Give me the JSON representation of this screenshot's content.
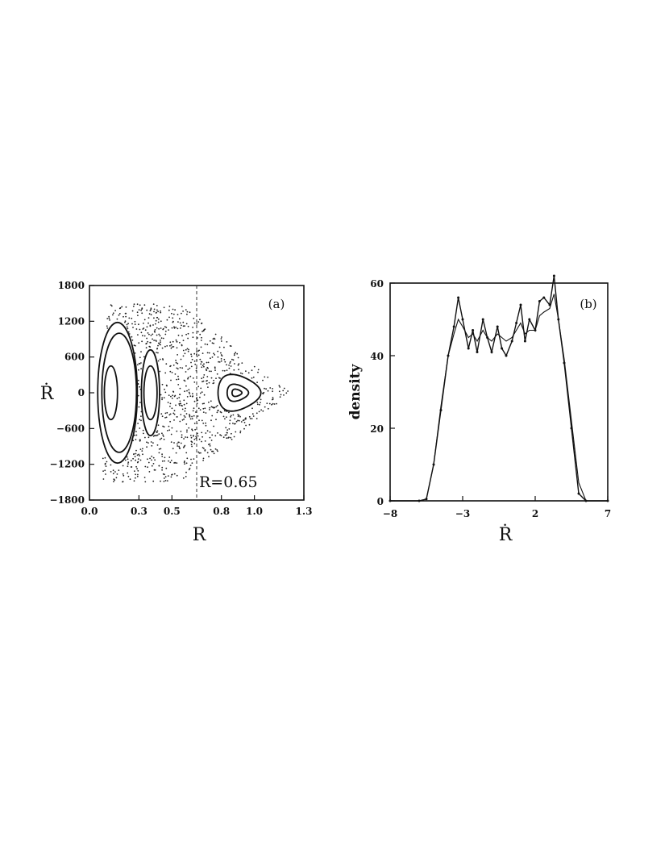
{
  "chart_data": [
    {
      "panel": "(a)",
      "type": "scatter",
      "xlabel": "R",
      "ylabel": "Ṙ",
      "xlim": [
        0.0,
        1.3
      ],
      "ylim": [
        -1800,
        1800
      ],
      "xticks": [
        "0.0",
        "0.3",
        "0.5",
        "0.8",
        "1.0",
        "1.3"
      ],
      "yticks": [
        "1800",
        "1200",
        "600",
        "0",
        "−600",
        "−1200",
        "−1800"
      ],
      "annotation": "R=0.65",
      "section_line_x": 0.65,
      "curves": [
        {
          "shape": "closed-orbit",
          "center": [
            0.13,
            0
          ],
          "half_width": 0.04,
          "half_height": 450
        },
        {
          "shape": "closed-orbit",
          "center": [
            0.17,
            0
          ],
          "half_width": 0.12,
          "half_height": 1180
        },
        {
          "shape": "closed-orbit",
          "center": [
            0.18,
            0
          ],
          "half_width": 0.105,
          "half_height": 1000
        },
        {
          "shape": "closed-orbit",
          "center": [
            0.37,
            0
          ],
          "half_width": 0.04,
          "half_height": 450
        },
        {
          "shape": "closed-orbit",
          "center": [
            0.37,
            0
          ],
          "half_width": 0.055,
          "half_height": 720
        },
        {
          "shape": "island",
          "center": [
            0.89,
            0
          ],
          "half_width": 0.03,
          "half_height": 60
        },
        {
          "shape": "island",
          "center": [
            0.89,
            0
          ],
          "half_width": 0.065,
          "half_height": 140
        },
        {
          "shape": "island",
          "center": [
            0.89,
            0
          ],
          "half_width": 0.13,
          "half_height": 300
        }
      ],
      "chaotic_sea": {
        "r_range": [
          0.08,
          1.22
        ],
        "rdot_range": [
          -1500,
          1500
        ],
        "points": 900
      }
    },
    {
      "panel": "(b)",
      "type": "line",
      "xlabel": "Ṙ",
      "ylabel": "density",
      "xlim": [
        -8,
        7
      ],
      "ylim": [
        0,
        60
      ],
      "xticks": [
        "−8",
        "−3",
        "2",
        "7"
      ],
      "yticks": [
        "0",
        "20",
        "40",
        "60"
      ],
      "series": [
        {
          "x": [
            -8,
            -6.0,
            -5.5,
            -5.0,
            -4.5,
            -4.0,
            -3.6,
            -3.3,
            -3.0,
            -2.6,
            -2.3,
            -2.0,
            -1.6,
            -1.3,
            -1.0,
            -0.6,
            -0.3,
            0.0,
            0.4,
            0.7,
            1.0,
            1.3,
            1.6,
            2.0,
            2.3,
            2.6,
            3.0,
            3.3,
            3.6,
            4.0,
            4.5,
            5.0,
            5.5,
            7
          ],
          "y": [
            0,
            0,
            0.5,
            10,
            25,
            40,
            48,
            56,
            50,
            42,
            47,
            41,
            50,
            45,
            41,
            48,
            42,
            40,
            44,
            49,
            54,
            44,
            50,
            47,
            55,
            56,
            54,
            62,
            50,
            38,
            20,
            2,
            0,
            0
          ]
        },
        {
          "x": [
            -8,
            -6.0,
            -5.5,
            -5.0,
            -4.5,
            -4.0,
            -3.6,
            -3.3,
            -3.0,
            -2.6,
            -2.3,
            -2.0,
            -1.6,
            -1.3,
            -1.0,
            -0.6,
            -0.3,
            0.0,
            0.4,
            0.7,
            1.0,
            1.3,
            1.6,
            2.0,
            2.3,
            2.6,
            3.0,
            3.3,
            3.6,
            4.0,
            4.5,
            5.0,
            5.5,
            7
          ],
          "y": [
            0,
            0,
            0.5,
            10,
            26,
            40,
            46,
            50,
            48,
            45,
            46,
            44,
            47,
            45,
            44,
            46,
            45,
            44,
            45,
            47,
            49,
            46,
            47,
            47,
            51,
            52,
            53,
            57,
            50,
            39,
            22,
            5,
            0,
            0
          ]
        }
      ]
    }
  ]
}
